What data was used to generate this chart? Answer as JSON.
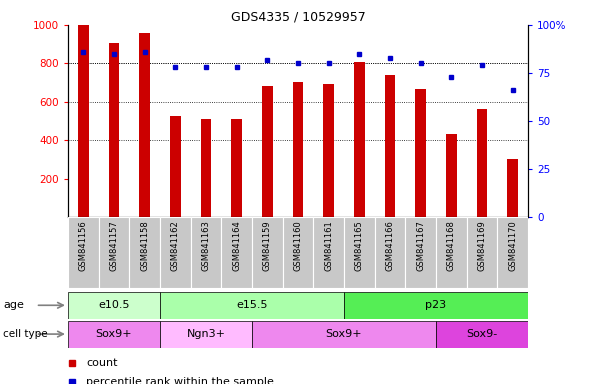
{
  "title": "GDS4335 / 10529957",
  "samples": [
    "GSM841156",
    "GSM841157",
    "GSM841158",
    "GSM841162",
    "GSM841163",
    "GSM841164",
    "GSM841159",
    "GSM841160",
    "GSM841161",
    "GSM841165",
    "GSM841166",
    "GSM841167",
    "GSM841168",
    "GSM841169",
    "GSM841170"
  ],
  "counts": [
    1000,
    905,
    960,
    525,
    510,
    510,
    680,
    705,
    695,
    805,
    740,
    665,
    430,
    560,
    300
  ],
  "percentiles": [
    86,
    85,
    86,
    78,
    78,
    78,
    82,
    80,
    80,
    85,
    83,
    80,
    73,
    79,
    66
  ],
  "age_groups": [
    {
      "label": "e10.5",
      "start": 0,
      "end": 3,
      "color": "#ccffcc"
    },
    {
      "label": "e15.5",
      "start": 3,
      "end": 9,
      "color": "#aaffaa"
    },
    {
      "label": "p23",
      "start": 9,
      "end": 15,
      "color": "#55ee55"
    }
  ],
  "cell_type_groups": [
    {
      "label": "Sox9+",
      "start": 0,
      "end": 3,
      "color": "#ee88ee"
    },
    {
      "label": "Ngn3+",
      "start": 3,
      "end": 6,
      "color": "#ffbbff"
    },
    {
      "label": "Sox9+",
      "start": 6,
      "end": 12,
      "color": "#ee88ee"
    },
    {
      "label": "Sox9-",
      "start": 12,
      "end": 15,
      "color": "#dd44dd"
    }
  ],
  "bar_color": "#cc0000",
  "dot_color": "#0000cc",
  "ylim_left": [
    0,
    1000
  ],
  "ylim_right": [
    0,
    100
  ],
  "yticks_left": [
    200,
    400,
    600,
    800,
    1000
  ],
  "yticks_right": [
    0,
    25,
    50,
    75,
    100
  ],
  "grid_values": [
    400,
    600,
    800
  ],
  "background_color": "#ffffff",
  "xtick_area_color": "#c8c8c8"
}
